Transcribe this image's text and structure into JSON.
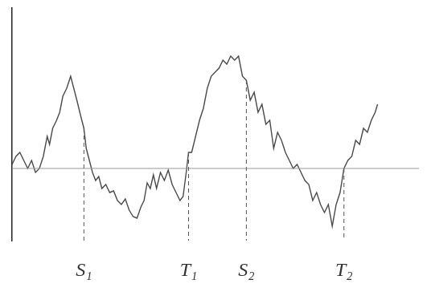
{
  "chart_data": {
    "type": "line",
    "x": [
      0,
      5,
      10,
      15,
      20,
      25,
      30,
      35,
      40,
      45,
      48,
      52,
      57,
      61,
      65,
      70,
      75,
      79,
      83,
      88,
      92,
      95,
      99,
      103,
      107,
      111,
      115,
      120,
      125,
      130,
      135,
      140,
      145,
      150,
      155,
      160,
      165,
      169,
      173,
      177,
      181,
      185,
      190,
      195,
      200,
      205,
      210,
      215,
      219,
      223,
      226,
      230,
      235,
      240,
      245,
      250,
      255,
      260,
      265,
      270,
      275,
      280,
      285,
      290,
      295,
      300,
      305,
      310,
      315,
      320,
      325,
      330,
      335,
      340,
      345,
      350,
      355,
      360,
      365,
      370,
      375,
      380,
      385,
      390,
      395,
      400,
      405,
      410,
      415,
      420,
      425,
      430,
      435,
      440,
      445,
      450,
      455,
      460,
      465,
      468
    ],
    "values": [
      5,
      15,
      20,
      10,
      0,
      10,
      -5,
      0,
      15,
      40,
      30,
      50,
      60,
      70,
      90,
      100,
      115,
      100,
      85,
      65,
      50,
      25,
      10,
      -5,
      -15,
      -10,
      -25,
      -20,
      -30,
      -28,
      -40,
      -45,
      -38,
      -52,
      -60,
      -62,
      -48,
      -40,
      -18,
      -25,
      -8,
      -25,
      -5,
      -15,
      -2,
      -20,
      -30,
      -40,
      -35,
      -5,
      20,
      20,
      40,
      60,
      75,
      100,
      115,
      120,
      125,
      135,
      130,
      140,
      135,
      140,
      115,
      110,
      85,
      95,
      70,
      80,
      55,
      60,
      25,
      45,
      35,
      20,
      10,
      0,
      5,
      -5,
      -15,
      -20,
      -40,
      -30,
      -45,
      -55,
      -45,
      -72,
      -45,
      -30,
      0,
      10,
      15,
      35,
      30,
      50,
      45,
      60,
      70,
      80
    ],
    "color": "#4a4a4a",
    "xlim": [
      0,
      521
    ],
    "ylim": [
      -90,
      200
    ],
    "grid": false,
    "tick_labels": false,
    "annotations": [
      {
        "text": "S₁",
        "x": 92
      },
      {
        "text": "T₁",
        "x": 226
      },
      {
        "text": "S₂",
        "x": 300
      },
      {
        "text": "T₂",
        "x": 425
      }
    ]
  }
}
